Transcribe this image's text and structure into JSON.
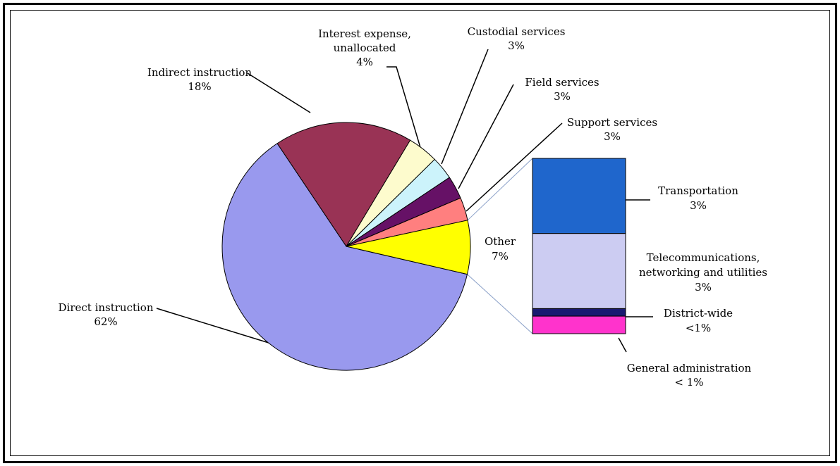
{
  "chart_data": {
    "type": "pie",
    "subtype": "pie-of-bar",
    "slices": [
      {
        "label": "Direct instruction",
        "pct_label": "62%",
        "value": 62,
        "color": "#9999ee"
      },
      {
        "label": "Indirect instruction",
        "pct_label": "18%",
        "value": 18,
        "color": "#993355"
      },
      {
        "label_lines": [
          "Interest expense,",
          "unallocated"
        ],
        "pct_label": "4%",
        "value": 4,
        "color": "#fdfbcd"
      },
      {
        "label": "Custodial services",
        "pct_label": "3%",
        "value": 3,
        "color": "#ccf3fb"
      },
      {
        "label": "Field services",
        "pct_label": "3%",
        "value": 3,
        "color": "#661166"
      },
      {
        "label": "Support services",
        "pct_label": "3%",
        "value": 3,
        "color": "#ff7f7f"
      },
      {
        "label": "Other",
        "pct_label": "7%",
        "value": 7,
        "color": "#ffff00"
      }
    ],
    "other_breakdown": [
      {
        "label": "Transportation",
        "pct_label": "3%",
        "value": 3,
        "color": "#1f66cc"
      },
      {
        "label_lines": [
          "Telecommunications,",
          "networking and utilities"
        ],
        "pct_label": "3%",
        "value": 3,
        "color": "#ccccf2"
      },
      {
        "label": "District-wide",
        "pct_label": "<1%",
        "value": 0.3,
        "color": "#191970"
      },
      {
        "label": "General administration",
        "pct_label": "< 1%",
        "value": 0.7,
        "color": "#ff33cc"
      }
    ]
  }
}
